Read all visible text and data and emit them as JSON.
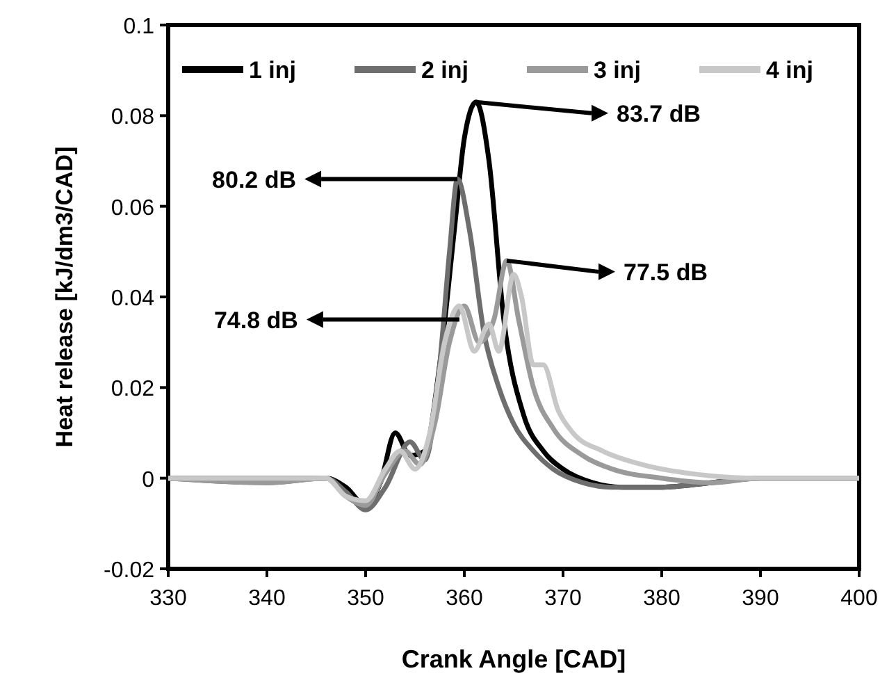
{
  "chart_data": {
    "type": "line",
    "xlabel": "Crank Angle [CAD]",
    "ylabel": "Heat release [kJ/dm3/CAD]",
    "xlim": [
      330,
      400
    ],
    "xticks": [
      330,
      340,
      350,
      360,
      370,
      380,
      390,
      400
    ],
    "ylim": [
      -0.02,
      0.1
    ],
    "yticks": [
      -0.02,
      0,
      0.02,
      0.04,
      0.06,
      0.08,
      0.1
    ],
    "legend": "top",
    "grid": false,
    "line_style": "solid",
    "series": [
      {
        "name": "1 inj",
        "color": "#000000",
        "x": [
          330,
          340,
          346,
          348,
          350,
          351.5,
          353,
          354.5,
          356,
          357.5,
          359,
          360,
          361.2,
          362.5,
          364,
          366,
          368,
          370,
          373,
          376,
          380,
          385,
          390,
          395,
          400
        ],
        "values": [
          0,
          0,
          0,
          -0.002,
          -0.006,
          -0.001,
          0.01,
          0.005,
          0.006,
          0.025,
          0.055,
          0.075,
          0.083,
          0.07,
          0.035,
          0.014,
          0.006,
          0.002,
          -0.001,
          -0.002,
          -0.002,
          -0.001,
          0,
          0,
          0
        ]
      },
      {
        "name": "2 inj",
        "color": "#6e6e6e",
        "x": [
          330,
          340,
          346,
          348,
          350,
          352,
          354.5,
          356,
          357.5,
          358.5,
          359.3,
          360.5,
          362,
          363.5,
          365,
          367,
          369,
          372,
          375,
          380,
          385,
          390,
          395,
          400
        ],
        "values": [
          0,
          -0.001,
          0,
          -0.003,
          -0.007,
          -0.002,
          0.008,
          0.004,
          0.025,
          0.05,
          0.066,
          0.055,
          0.032,
          0.02,
          0.012,
          0.006,
          0.002,
          -0.001,
          -0.002,
          -0.002,
          -0.001,
          0,
          0,
          0
        ]
      },
      {
        "name": "3 inj",
        "color": "#9a9a9a",
        "x": [
          330,
          340,
          346,
          348,
          350,
          352,
          354,
          355.5,
          357,
          358.5,
          360,
          361.5,
          363,
          364.3,
          365.5,
          367,
          369,
          372,
          375,
          380,
          385,
          390,
          395,
          400
        ],
        "values": [
          0,
          -0.001,
          0,
          -0.004,
          -0.006,
          0.001,
          0.006,
          0.003,
          0.012,
          0.03,
          0.038,
          0.03,
          0.035,
          0.048,
          0.035,
          0.02,
          0.011,
          0.005,
          0.002,
          0,
          -0.001,
          0,
          0,
          0
        ]
      },
      {
        "name": "4 inj",
        "color": "#c8c8c8",
        "x": [
          330,
          340,
          346,
          348,
          350,
          352,
          353.5,
          355,
          356.5,
          358,
          359.5,
          361,
          362.5,
          363.5,
          365,
          365.8,
          367,
          368,
          369.5,
          371,
          374,
          378,
          383,
          390,
          395,
          400
        ],
        "values": [
          0,
          0,
          0,
          -0.004,
          -0.005,
          0.002,
          0.006,
          0.002,
          0.01,
          0.03,
          0.038,
          0.028,
          0.034,
          0.028,
          0.045,
          0.04,
          0.025,
          0.025,
          0.015,
          0.01,
          0.006,
          0.003,
          0.001,
          0,
          0,
          0
        ]
      }
    ],
    "annotations": [
      {
        "text": "83.7 dB",
        "x": 361.2,
        "y": 0.083
      },
      {
        "text": "80.2 dB",
        "x": 359.3,
        "y": 0.066
      },
      {
        "text": "77.5 dB",
        "x": 364.3,
        "y": 0.048
      },
      {
        "text": "74.8 dB",
        "x": 359.5,
        "y": 0.035
      }
    ]
  }
}
